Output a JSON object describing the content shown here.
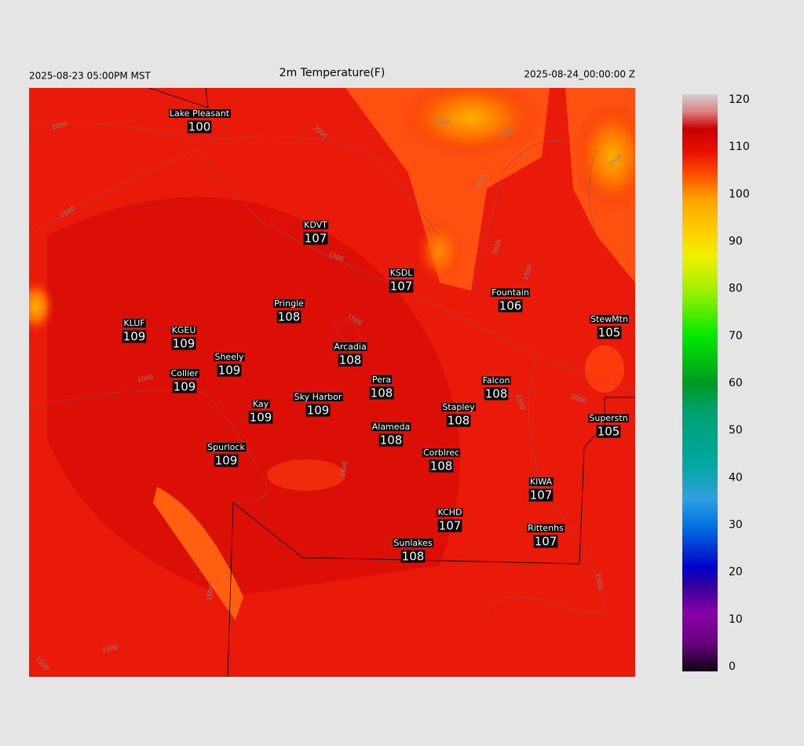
{
  "header": {
    "valid_time": "2025-08-23 05:00PM MST",
    "title": "2m Temperature(F)",
    "init_time": "2025-08-24_00:00:00 Z"
  },
  "stations": [
    {
      "name": "Lake Pleasant",
      "value": 100
    },
    {
      "name": "KDVT",
      "value": 107
    },
    {
      "name": "KSDL",
      "value": 107
    },
    {
      "name": "Pringle",
      "value": 108
    },
    {
      "name": "Fountain",
      "value": 106
    },
    {
      "name": "KLUF",
      "value": 109
    },
    {
      "name": "KGEU",
      "value": 109
    },
    {
      "name": "StewMtn",
      "value": 105
    },
    {
      "name": "Arcadia",
      "value": 108
    },
    {
      "name": "Sheely",
      "value": 109
    },
    {
      "name": "Collier",
      "value": 109
    },
    {
      "name": "Pera",
      "value": 108
    },
    {
      "name": "Falcon",
      "value": 108
    },
    {
      "name": "Sky Harbor",
      "value": 109
    },
    {
      "name": "Kay",
      "value": 109
    },
    {
      "name": "Stapley",
      "value": 108
    },
    {
      "name": "Superstn",
      "value": 105
    },
    {
      "name": "Alameda",
      "value": 108
    },
    {
      "name": "Spurlock",
      "value": 109
    },
    {
      "name": "Corblrec",
      "value": 108
    },
    {
      "name": "KIWA",
      "value": 107
    },
    {
      "name": "KCHD",
      "value": 107
    },
    {
      "name": "Rittenhs",
      "value": 107
    },
    {
      "name": "Sunlakes",
      "value": 108
    }
  ],
  "contour_labels": [
    "2000",
    "2000",
    "1500",
    "1500",
    "3500",
    "3000",
    "3500",
    "2000",
    "2000",
    "1500",
    "1500",
    "1000",
    "2000",
    "1500",
    "1500",
    "1500",
    "1500",
    "1500",
    "1500"
  ],
  "colorbar": {
    "range": [
      0,
      120
    ],
    "ticks": [
      0,
      10,
      20,
      30,
      40,
      50,
      60,
      70,
      80,
      90,
      100,
      110,
      120
    ]
  }
}
